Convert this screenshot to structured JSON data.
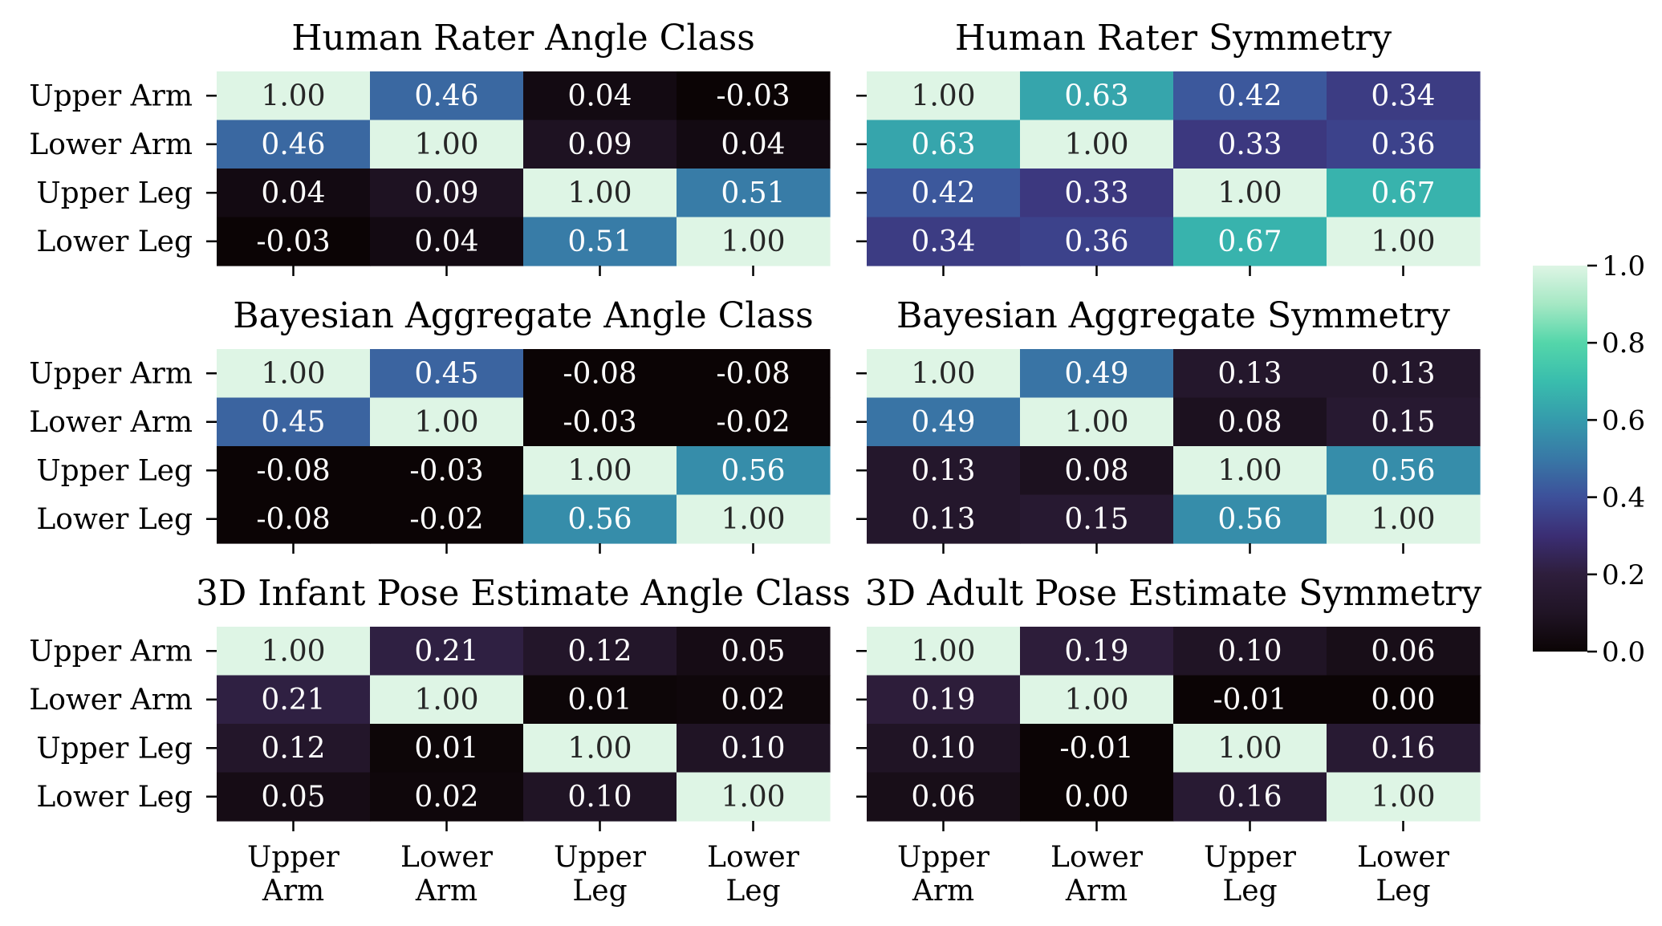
{
  "chart_data": {
    "type": "heatmap",
    "row_labels": [
      "Upper Arm",
      "Lower Arm",
      "Upper Leg",
      "Lower Leg"
    ],
    "col_labels": [
      [
        "Upper",
        "Arm"
      ],
      [
        "Lower",
        "Arm"
      ],
      [
        "Upper",
        "Leg"
      ],
      [
        "Lower",
        "Leg"
      ]
    ],
    "colorbar": {
      "range": [
        0.0,
        1.0
      ],
      "ticks": [
        "0.0",
        "0.2",
        "0.4",
        "0.6",
        "0.8",
        "1.0"
      ],
      "colormap": "mako"
    },
    "panels": [
      {
        "title": "Human Rater Angle Class",
        "values": [
          [
            1.0,
            0.46,
            0.04,
            -0.03
          ],
          [
            0.46,
            1.0,
            0.09,
            0.04
          ],
          [
            0.04,
            0.09,
            1.0,
            0.51
          ],
          [
            -0.03,
            0.04,
            0.51,
            1.0
          ]
        ]
      },
      {
        "title": "Human Rater Symmetry",
        "values": [
          [
            1.0,
            0.63,
            0.42,
            0.34
          ],
          [
            0.63,
            1.0,
            0.33,
            0.36
          ],
          [
            0.42,
            0.33,
            1.0,
            0.67
          ],
          [
            0.34,
            0.36,
            0.67,
            1.0
          ]
        ]
      },
      {
        "title": "Bayesian Aggregate Angle Class",
        "values": [
          [
            1.0,
            0.45,
            -0.08,
            -0.08
          ],
          [
            0.45,
            1.0,
            -0.03,
            -0.02
          ],
          [
            -0.08,
            -0.03,
            1.0,
            0.56
          ],
          [
            -0.08,
            -0.02,
            0.56,
            1.0
          ]
        ]
      },
      {
        "title": "Bayesian Aggregate Symmetry",
        "values": [
          [
            1.0,
            0.49,
            0.13,
            0.13
          ],
          [
            0.49,
            1.0,
            0.08,
            0.15
          ],
          [
            0.13,
            0.08,
            1.0,
            0.56
          ],
          [
            0.13,
            0.15,
            0.56,
            1.0
          ]
        ]
      },
      {
        "title": "3D Infant Pose Estimate Angle Class",
        "values": [
          [
            1.0,
            0.21,
            0.12,
            0.05
          ],
          [
            0.21,
            1.0,
            0.01,
            0.02
          ],
          [
            0.12,
            0.01,
            1.0,
            0.1
          ],
          [
            0.05,
            0.02,
            0.1,
            1.0
          ]
        ]
      },
      {
        "title": "3D Adult Pose Estimate Symmetry",
        "values": [
          [
            1.0,
            0.19,
            0.1,
            0.06
          ],
          [
            0.19,
            1.0,
            -0.01,
            0.0
          ],
          [
            0.1,
            -0.01,
            1.0,
            0.16
          ],
          [
            0.06,
            0.0,
            0.16,
            1.0
          ]
        ]
      }
    ]
  }
}
